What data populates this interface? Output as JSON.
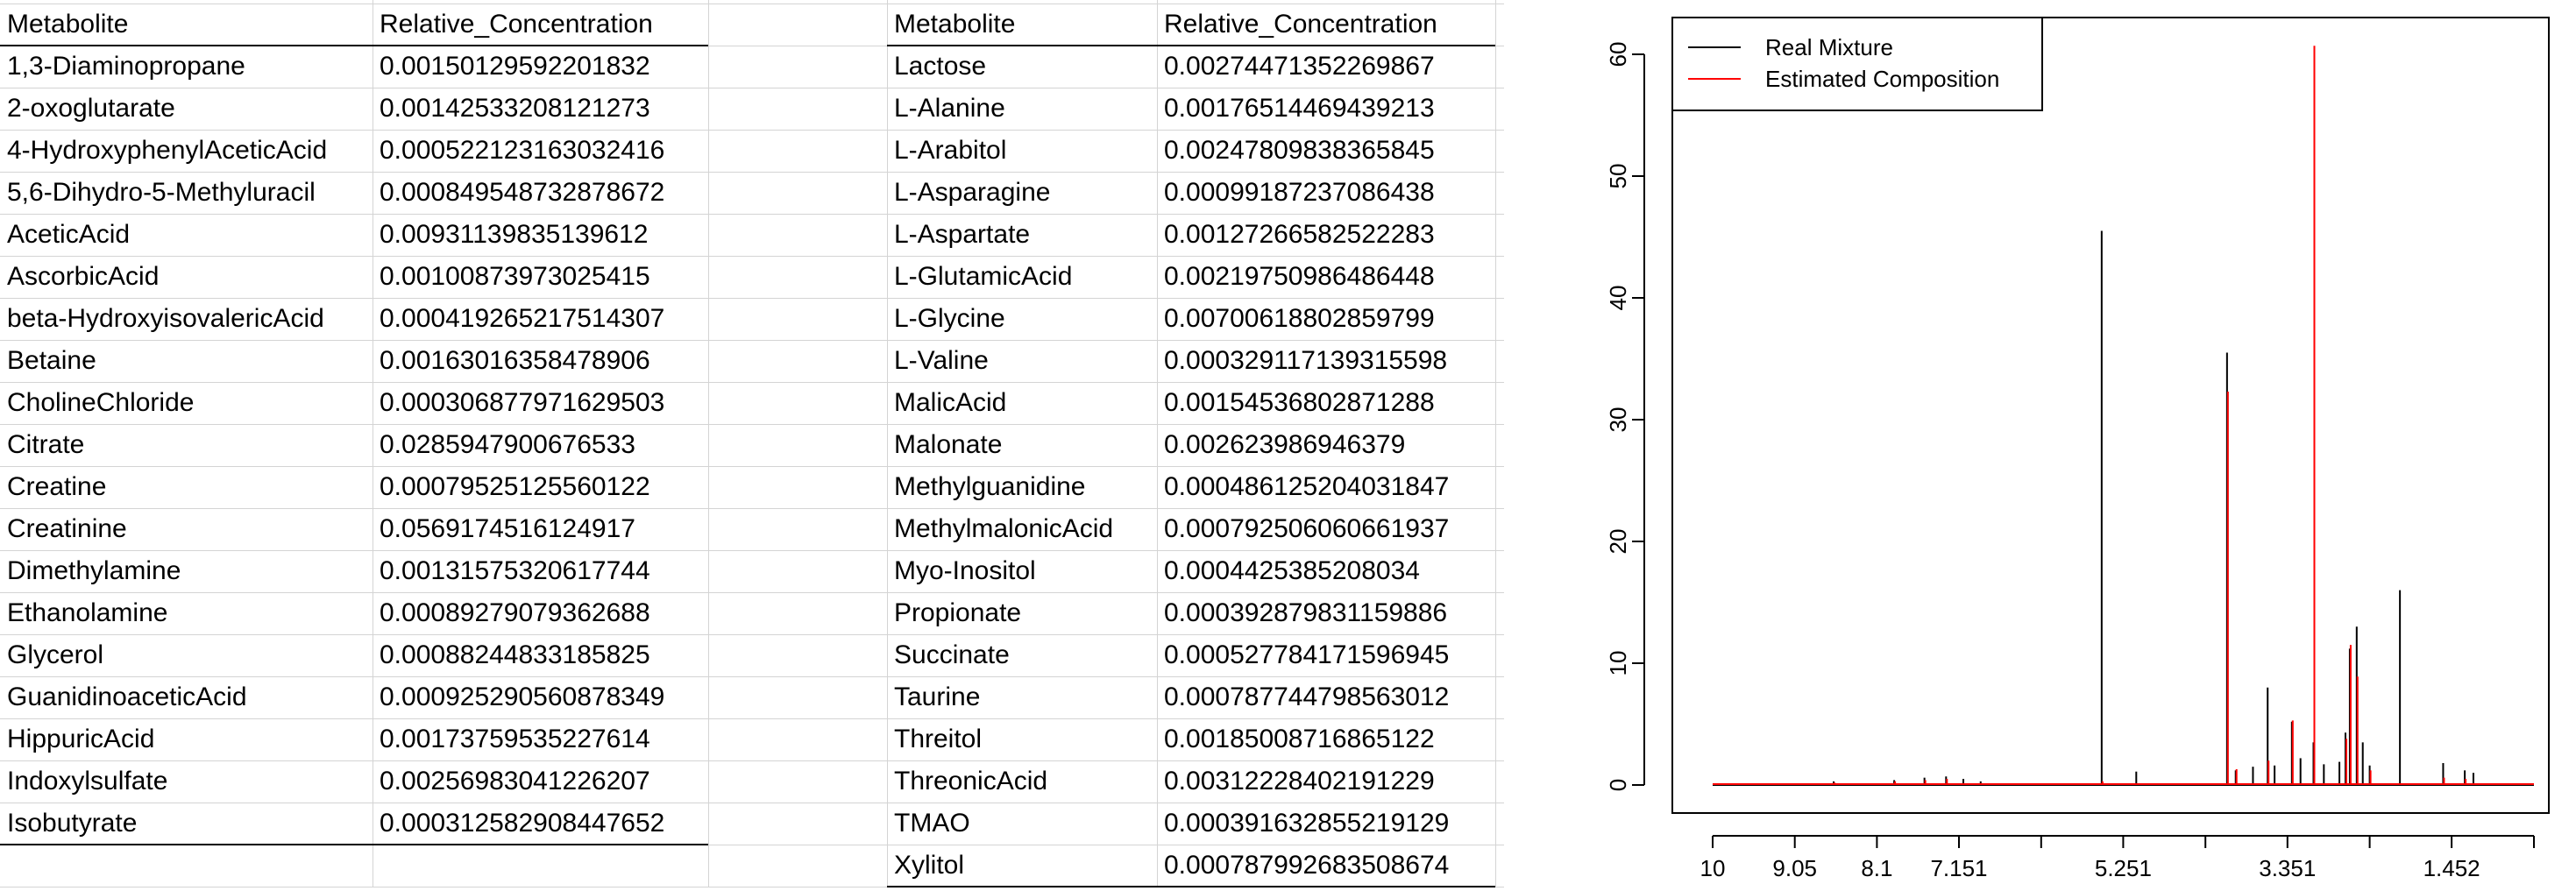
{
  "tables": [
    {
      "headers": [
        "Metabolite",
        "Relative_Concentration"
      ],
      "rows": [
        [
          "1,3-Diaminopropane",
          "0.00150129592201832"
        ],
        [
          "2-oxoglutarate",
          "0.00142533208121273"
        ],
        [
          "4-HydroxyphenylAceticAcid",
          "0.000522123163032416"
        ],
        [
          "5,6-Dihydro-5-Methyluracil",
          "0.000849548732878672"
        ],
        [
          "AceticAcid",
          "0.00931139835139612"
        ],
        [
          "AscorbicAcid",
          "0.00100873973025415"
        ],
        [
          "beta-HydroxyisovalericAcid",
          "0.000419265217514307"
        ],
        [
          "Betaine",
          "0.00163016358478906"
        ],
        [
          "CholineChloride",
          "0.000306877971629503"
        ],
        [
          "Citrate",
          "0.0285947900676533"
        ],
        [
          "Creatine",
          "0.00079525125560122"
        ],
        [
          "Creatinine",
          "0.0569174516124917"
        ],
        [
          "Dimethylamine",
          "0.00131575320617744"
        ],
        [
          "Ethanolamine",
          "0.00089279079362688"
        ],
        [
          "Glycerol",
          "0.00088244833185825"
        ],
        [
          "GuanidinoaceticAcid",
          "0.000925290560878349"
        ],
        [
          "HippuricAcid",
          "0.00173759535227614"
        ],
        [
          "Indoxylsulfate",
          "0.00256983041226207"
        ],
        [
          "Isobutyrate",
          "0.000312582908447652"
        ]
      ]
    },
    {
      "headers": [
        "Metabolite",
        "Relative_Concentration"
      ],
      "rows": [
        [
          "Lactose",
          "0.00274471352269867"
        ],
        [
          "L-Alanine",
          "0.00176514469439213"
        ],
        [
          "L-Arabitol",
          "0.00247809838365845"
        ],
        [
          "L-Asparagine",
          "0.00099187237086438"
        ],
        [
          "L-Aspartate",
          "0.00127266582522283"
        ],
        [
          "L-GlutamicAcid",
          "0.00219750986486448"
        ],
        [
          "L-Glycine",
          "0.00700618802859799"
        ],
        [
          "L-Valine",
          "0.000329117139315598"
        ],
        [
          "MalicAcid",
          "0.00154536802871288"
        ],
        [
          "Malonate",
          "0.002623986946379"
        ],
        [
          "Methylguanidine",
          "0.000486125204031847"
        ],
        [
          "MethylmalonicAcid",
          "0.000792506060661937"
        ],
        [
          "Myo-Inositol",
          "0.0004425385208034"
        ],
        [
          "Propionate",
          "0.000392879831159886"
        ],
        [
          "Succinate",
          "0.000527784171596945"
        ],
        [
          "Taurine",
          "0.000787744798563012"
        ],
        [
          "Threitol",
          "0.00185008716865122"
        ],
        [
          "ThreonicAcid",
          "0.00312228402191229"
        ],
        [
          "TMAO",
          "0.000391632855219129"
        ],
        [
          "Xylitol",
          "0.000787992683508674"
        ]
      ]
    }
  ],
  "chart_data": {
    "type": "line",
    "title": "",
    "xlabel": "",
    "ylabel": "",
    "xlim": [
      10,
      0.5
    ],
    "ylim": [
      0,
      60
    ],
    "x_tick_labels": [
      "10",
      "9.05",
      "8.1",
      "7.151",
      "5.251",
      "3.351",
      "1.452"
    ],
    "x_tick_values": [
      10,
      9.05,
      8.1,
      7.151,
      5.251,
      3.351,
      1.452
    ],
    "x_minor_ticks": [
      6.2,
      4.3,
      2.4,
      0.5
    ],
    "y_ticks": [
      0,
      10,
      20,
      30,
      40,
      50,
      60
    ],
    "legend_position": "top-left",
    "grid": false,
    "series": [
      {
        "name": "Real Mixture",
        "color": "#000000",
        "peaks": [
          [
            8.6,
            0.3
          ],
          [
            7.9,
            0.4
          ],
          [
            7.55,
            0.6
          ],
          [
            7.3,
            0.7
          ],
          [
            7.1,
            0.5
          ],
          [
            6.9,
            0.3
          ],
          [
            5.5,
            45.5
          ],
          [
            5.1,
            1.1
          ],
          [
            4.05,
            35.5
          ],
          [
            3.95,
            1.2
          ],
          [
            3.75,
            1.5
          ],
          [
            3.58,
            8.0
          ],
          [
            3.5,
            1.6
          ],
          [
            3.3,
            5.2
          ],
          [
            3.2,
            2.2
          ],
          [
            3.05,
            3.5
          ],
          [
            2.93,
            1.7
          ],
          [
            2.75,
            1.9
          ],
          [
            2.68,
            4.3
          ],
          [
            2.63,
            11.2
          ],
          [
            2.55,
            13.0
          ],
          [
            2.48,
            3.5
          ],
          [
            2.4,
            1.6
          ],
          [
            2.05,
            16.0
          ],
          [
            1.55,
            1.8
          ],
          [
            1.3,
            1.2
          ],
          [
            1.2,
            1.0
          ]
        ]
      },
      {
        "name": "Estimated Composition",
        "color": "#ff0000",
        "peaks": [
          [
            8.6,
            0.2
          ],
          [
            7.9,
            0.3
          ],
          [
            7.55,
            0.4
          ],
          [
            7.3,
            0.5
          ],
          [
            5.5,
            0.3
          ],
          [
            4.05,
            32.3
          ],
          [
            3.95,
            1.3
          ],
          [
            3.58,
            2.0
          ],
          [
            3.3,
            5.3
          ],
          [
            3.05,
            60.7
          ],
          [
            2.68,
            3.8
          ],
          [
            2.63,
            11.5
          ],
          [
            2.55,
            8.9
          ],
          [
            2.4,
            1.2
          ],
          [
            1.55,
            0.6
          ],
          [
            1.3,
            0.5
          ]
        ]
      }
    ]
  }
}
